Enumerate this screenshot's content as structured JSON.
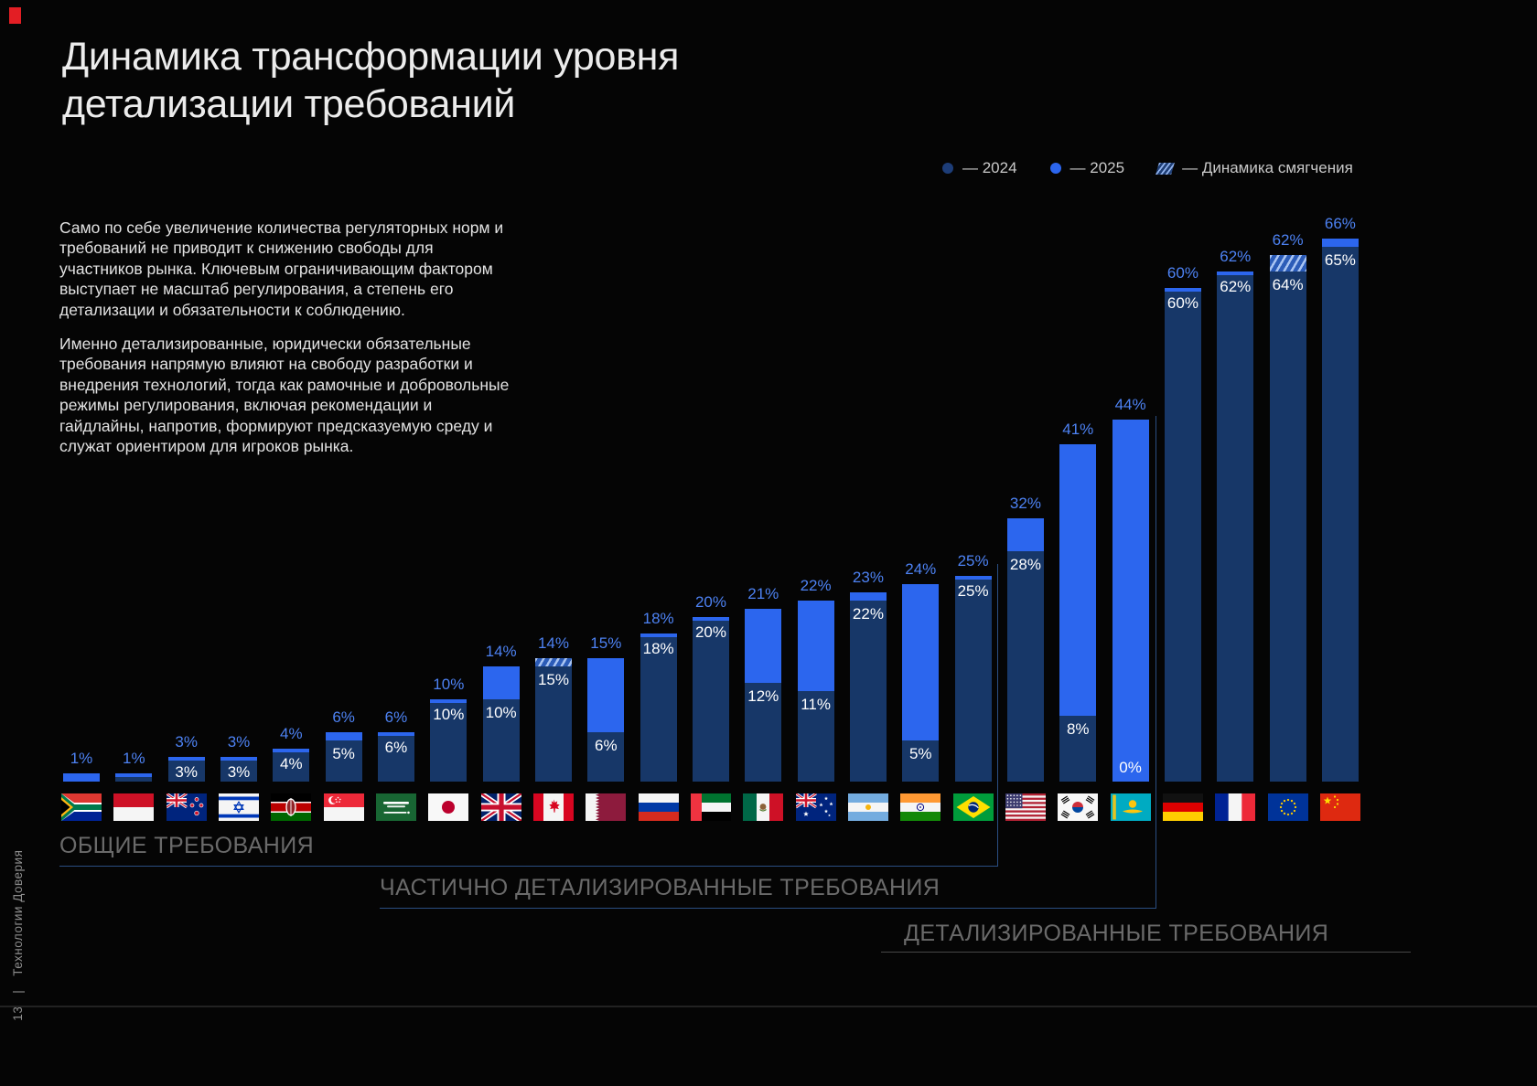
{
  "page": {
    "number": "13",
    "divider": "|",
    "brand": "Технологии Доверия"
  },
  "title": "Динамика трансформации уровня\nдетализации требований",
  "legend": {
    "items": [
      {
        "swatch": "dot",
        "color": "#1d3d78",
        "label": "— 2024"
      },
      {
        "swatch": "dot",
        "color": "#2c66ee",
        "label": "— 2025"
      },
      {
        "swatch": "hatch",
        "color": "#8fb0ea",
        "label": "— Динамика смягчения"
      }
    ]
  },
  "intro": {
    "p1": "Само по себе увеличение количества регуляторных норм и требований не приводит к снижению свободы для участников рынка. Ключевым ограничивающим фактором выступает не масштаб регулирования, а степень его детализации и обязательности к соблюдению.",
    "p2": "Именно детализированные, юридически обязательные требования напрямую влияют на свободу разработки и внедрения технологий, тогда как рамочные и добровольные режимы регулирования, включая рекомендации и гайдлайны, напротив, формируют предсказуемую среду и служат ориентиром для игроков рынка."
  },
  "groups": [
    {
      "label": "ОБЩИЕ ТРЕБОВАНИЯ"
    },
    {
      "label": "ЧАСТИЧНО ДЕТАЛИЗИРОВАННЫЕ ТРЕБОВАНИЯ"
    },
    {
      "label": "ДЕТАЛИЗИРОВАННЫЕ ТРЕБОВАНИЯ"
    }
  ],
  "chart_data": {
    "type": "bar",
    "unit": "%",
    "ylim": [
      0,
      66
    ],
    "series": [
      "2024",
      "2025"
    ],
    "softening_label": "Динамика смягчения",
    "colors": {
      "y2024": "#173768",
      "y2025": "#2c66ee",
      "label_2025": "#4d82f3",
      "label_2024": "#ffffff"
    },
    "bars": [
      {
        "country": "South Africa",
        "flag": "za",
        "v2024": 0,
        "v2025": 1,
        "label_2025": "1%",
        "label_2024": null
      },
      {
        "country": "Indonesia",
        "flag": "id",
        "v2024": 1,
        "v2025": 1,
        "label_2025": "1%",
        "label_2024": null
      },
      {
        "country": "New Zealand",
        "flag": "nz",
        "v2024": 3,
        "v2025": 3,
        "label_2025": "3%",
        "label_2024": "3%"
      },
      {
        "country": "Israel",
        "flag": "il",
        "v2024": 3,
        "v2025": 3,
        "label_2025": "3%",
        "label_2024": "3%"
      },
      {
        "country": "Kenya",
        "flag": "ke",
        "v2024": 4,
        "v2025": 4,
        "label_2025": "4%",
        "label_2024": "4%"
      },
      {
        "country": "Singapore",
        "flag": "sg",
        "v2024": 5,
        "v2025": 6,
        "label_2025": "6%",
        "label_2024": "5%"
      },
      {
        "country": "Saudi Arabia",
        "flag": "sa",
        "v2024": 6,
        "v2025": 6,
        "label_2025": "6%",
        "label_2024": "6%"
      },
      {
        "country": "Japan",
        "flag": "jp",
        "v2024": 10,
        "v2025": 10,
        "label_2025": "10%",
        "label_2024": "10%"
      },
      {
        "country": "United Kingdom",
        "flag": "gb",
        "v2024": 10,
        "v2025": 14,
        "label_2025": "14%",
        "label_2024": "10%"
      },
      {
        "country": "Canada",
        "flag": "ca",
        "v2024": 15,
        "v2025": 14,
        "label_2025": "14%",
        "label_2024": "15%",
        "softening": true
      },
      {
        "country": "Qatar",
        "flag": "qa",
        "v2024": 6,
        "v2025": 15,
        "label_2025": "15%",
        "label_2024": "6%"
      },
      {
        "country": "Russia",
        "flag": "ru",
        "v2024": 18,
        "v2025": 18,
        "label_2025": "18%",
        "label_2024": "18%"
      },
      {
        "country": "United Arab Emirates",
        "flag": "ae",
        "v2024": 20,
        "v2025": 20,
        "label_2025": "20%",
        "label_2024": "20%"
      },
      {
        "country": "Mexico",
        "flag": "mx",
        "v2024": 12,
        "v2025": 21,
        "label_2025": "21%",
        "label_2024": "12%"
      },
      {
        "country": "Australia",
        "flag": "au",
        "v2024": 11,
        "v2025": 22,
        "label_2025": "22%",
        "label_2024": "11%"
      },
      {
        "country": "Argentina",
        "flag": "ar",
        "v2024": 22,
        "v2025": 23,
        "label_2025": "23%",
        "label_2024": "22%"
      },
      {
        "country": "India",
        "flag": "in",
        "v2024": 5,
        "v2025": 24,
        "label_2025": "24%",
        "label_2024": "5%"
      },
      {
        "country": "Brazil",
        "flag": "br",
        "v2024": 25,
        "v2025": 25,
        "label_2025": "25%",
        "label_2024": "25%"
      },
      {
        "country": "United States",
        "flag": "us",
        "v2024": 28,
        "v2025": 32,
        "label_2025": "32%",
        "label_2024": "28%"
      },
      {
        "country": "South Korea",
        "flag": "kr",
        "v2024": 8,
        "v2025": 41,
        "label_2025": "41%",
        "label_2024": "8%"
      },
      {
        "country": "Kazakhstan",
        "flag": "kz",
        "v2024": 0,
        "v2025": 44,
        "label_2025": "44%",
        "label_2024": "0%"
      },
      {
        "country": "Germany",
        "flag": "de",
        "v2024": 60,
        "v2025": 60,
        "label_2025": "60%",
        "label_2024": "60%"
      },
      {
        "country": "France",
        "flag": "fr",
        "v2024": 62,
        "v2025": 62,
        "label_2025": "62%",
        "label_2024": "62%"
      },
      {
        "country": "European Union",
        "flag": "eu",
        "v2024": 64,
        "v2025": 62,
        "label_2025": "62%",
        "label_2024": "64%",
        "softening": true
      },
      {
        "country": "China",
        "flag": "cn",
        "v2024": 65,
        "v2025": 66,
        "label_2025": "66%",
        "label_2024": "65%"
      }
    ]
  }
}
